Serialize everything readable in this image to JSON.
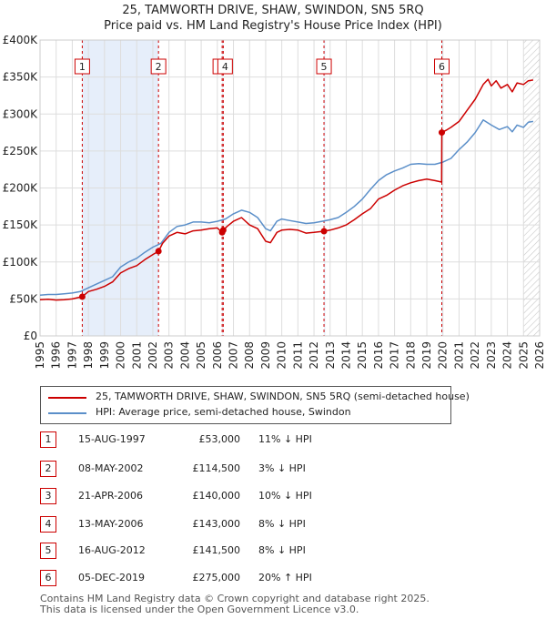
{
  "title_line1": "25, TAMWORTH DRIVE, SHAW, SWINDON, SN5 5RQ",
  "title_line2": "Price paid vs. HM Land Registry's House Price Index (HPI)",
  "colors": {
    "property": "#cc0000",
    "hpi": "#5b8fc9",
    "shade": "#e6eefa"
  },
  "chart_data": {
    "type": "line",
    "xlim": [
      1995,
      2026
    ],
    "ylim": [
      0,
      400000
    ],
    "x_ticks": [
      "1995",
      "1996",
      "1997",
      "1998",
      "1999",
      "2000",
      "2001",
      "2002",
      "2003",
      "2004",
      "2005",
      "2006",
      "2007",
      "2008",
      "2009",
      "2010",
      "2011",
      "2012",
      "2013",
      "2014",
      "2015",
      "2016",
      "2017",
      "2018",
      "2019",
      "2020",
      "2021",
      "2022",
      "2023",
      "2024",
      "2025",
      "2026"
    ],
    "y_ticks": [
      {
        "value": 0,
        "label": "£0"
      },
      {
        "value": 50000,
        "label": "£50K"
      },
      {
        "value": 100000,
        "label": "£100K"
      },
      {
        "value": 150000,
        "label": "£150K"
      },
      {
        "value": 200000,
        "label": "£200K"
      },
      {
        "value": 250000,
        "label": "£250K"
      },
      {
        "value": 300000,
        "label": "£300K"
      },
      {
        "value": 350000,
        "label": "£350K"
      },
      {
        "value": 400000,
        "label": "£400K"
      }
    ],
    "shaded_ranges": [
      [
        1997.62,
        2002.35
      ],
      [
        2006.3,
        2006.37
      ],
      [
        2012.62,
        2012.7
      ],
      [
        2019.93,
        2020.0
      ]
    ],
    "hatch_from": 2025.0,
    "series": [
      {
        "name": "25, TAMWORTH DRIVE, SHAW, SWINDON, SN5 5RQ (semi-detached house)",
        "x": [
          1995.0,
          1995.5,
          1996.0,
          1996.5,
          1997.0,
          1997.62,
          1998.0,
          1998.5,
          1999.0,
          1999.5,
          2000.0,
          2000.5,
          2001.0,
          2001.5,
          2002.0,
          2002.35,
          2002.6,
          2003.0,
          2003.5,
          2004.0,
          2004.5,
          2005.0,
          2005.5,
          2006.0,
          2006.3,
          2006.37,
          2006.6,
          2007.0,
          2007.5,
          2008.0,
          2008.5,
          2009.0,
          2009.3,
          2009.7,
          2010.0,
          2010.5,
          2011.0,
          2011.5,
          2012.0,
          2012.62,
          2013.0,
          2013.5,
          2014.0,
          2014.5,
          2015.0,
          2015.5,
          2016.0,
          2016.5,
          2017.0,
          2017.5,
          2018.0,
          2018.5,
          2019.0,
          2019.5,
          2019.92,
          2019.93,
          2020.2,
          2020.5,
          2021.0,
          2021.5,
          2022.0,
          2022.5,
          2022.8,
          2023.0,
          2023.3,
          2023.6,
          2024.0,
          2024.3,
          2024.6,
          2025.0,
          2025.3,
          2025.6
        ],
        "values": [
          49000,
          49500,
          48500,
          49000,
          50000,
          53000,
          60000,
          63000,
          67000,
          73000,
          85000,
          91000,
          95000,
          103000,
          110000,
          114500,
          125000,
          135000,
          140000,
          138000,
          142000,
          143000,
          145000,
          146000,
          140000,
          143000,
          148000,
          155000,
          160000,
          150000,
          145000,
          128000,
          126000,
          140000,
          143000,
          144000,
          143000,
          139000,
          140000,
          141500,
          143000,
          146000,
          150000,
          157000,
          165000,
          172000,
          185000,
          190000,
          197000,
          203000,
          207000,
          210000,
          212000,
          210000,
          208000,
          275000,
          278000,
          282000,
          290000,
          305000,
          320000,
          340000,
          347000,
          338000,
          345000,
          335000,
          340000,
          330000,
          342000,
          340000,
          345000,
          346000
        ]
      },
      {
        "name": "HPI: Average price, semi-detached house, Swindon",
        "x": [
          1995.0,
          1995.5,
          1996.0,
          1996.5,
          1997.0,
          1997.5,
          1998.0,
          1998.5,
          1999.0,
          1999.5,
          2000.0,
          2000.5,
          2001.0,
          2001.5,
          2002.0,
          2002.5,
          2003.0,
          2003.5,
          2004.0,
          2004.5,
          2005.0,
          2005.5,
          2006.0,
          2006.5,
          2007.0,
          2007.5,
          2008.0,
          2008.5,
          2009.0,
          2009.3,
          2009.7,
          2010.0,
          2010.5,
          2011.0,
          2011.5,
          2012.0,
          2012.5,
          2013.0,
          2013.5,
          2014.0,
          2014.5,
          2015.0,
          2015.5,
          2016.0,
          2016.5,
          2017.0,
          2017.5,
          2018.0,
          2018.5,
          2019.0,
          2019.5,
          2020.0,
          2020.5,
          2021.0,
          2021.5,
          2022.0,
          2022.5,
          2023.0,
          2023.5,
          2024.0,
          2024.3,
          2024.6,
          2025.0,
          2025.3,
          2025.6
        ],
        "values": [
          55000,
          56000,
          56000,
          57000,
          58000,
          60000,
          65000,
          70000,
          75000,
          80000,
          93000,
          100000,
          105000,
          113000,
          120000,
          125000,
          140000,
          148000,
          150000,
          154000,
          154000,
          153000,
          155000,
          158000,
          165000,
          170000,
          167000,
          160000,
          145000,
          142000,
          155000,
          158000,
          156000,
          154000,
          152000,
          153000,
          155000,
          157000,
          160000,
          167000,
          175000,
          185000,
          198000,
          210000,
          218000,
          223000,
          227000,
          232000,
          233000,
          232000,
          232000,
          235000,
          240000,
          252000,
          262000,
          275000,
          292000,
          285000,
          279000,
          283000,
          276000,
          285000,
          282000,
          289000,
          290000
        ]
      }
    ],
    "sales": [
      {
        "label": "1",
        "x": 1997.62,
        "value": 53000
      },
      {
        "label": "2",
        "x": 2002.35,
        "value": 114500
      },
      {
        "label": "3",
        "x": 2006.3,
        "value": 140000
      },
      {
        "label": "4",
        "x": 2006.37,
        "value": 143000
      },
      {
        "label": "5",
        "x": 2012.62,
        "value": 141500
      },
      {
        "label": "6",
        "x": 2019.93,
        "value": 275000
      }
    ]
  },
  "legend": {
    "property": "25, TAMWORTH DRIVE, SHAW, SWINDON, SN5 5RQ (semi-detached house)",
    "hpi": "HPI: Average price, semi-detached house, Swindon"
  },
  "table": [
    {
      "num": "1",
      "date": "15-AUG-1997",
      "price": "£53,000",
      "hpi": "11% ↓ HPI"
    },
    {
      "num": "2",
      "date": "08-MAY-2002",
      "price": "£114,500",
      "hpi": "3% ↓ HPI"
    },
    {
      "num": "3",
      "date": "21-APR-2006",
      "price": "£140,000",
      "hpi": "10% ↓ HPI"
    },
    {
      "num": "4",
      "date": "13-MAY-2006",
      "price": "£143,000",
      "hpi": "8% ↓ HPI"
    },
    {
      "num": "5",
      "date": "16-AUG-2012",
      "price": "£141,500",
      "hpi": "8% ↓ HPI"
    },
    {
      "num": "6",
      "date": "05-DEC-2019",
      "price": "£275,000",
      "hpi": "20% ↑ HPI"
    }
  ],
  "footer_line1": "Contains HM Land Registry data © Crown copyright and database right 2025.",
  "footer_line2": "This data is licensed under the Open Government Licence v3.0."
}
